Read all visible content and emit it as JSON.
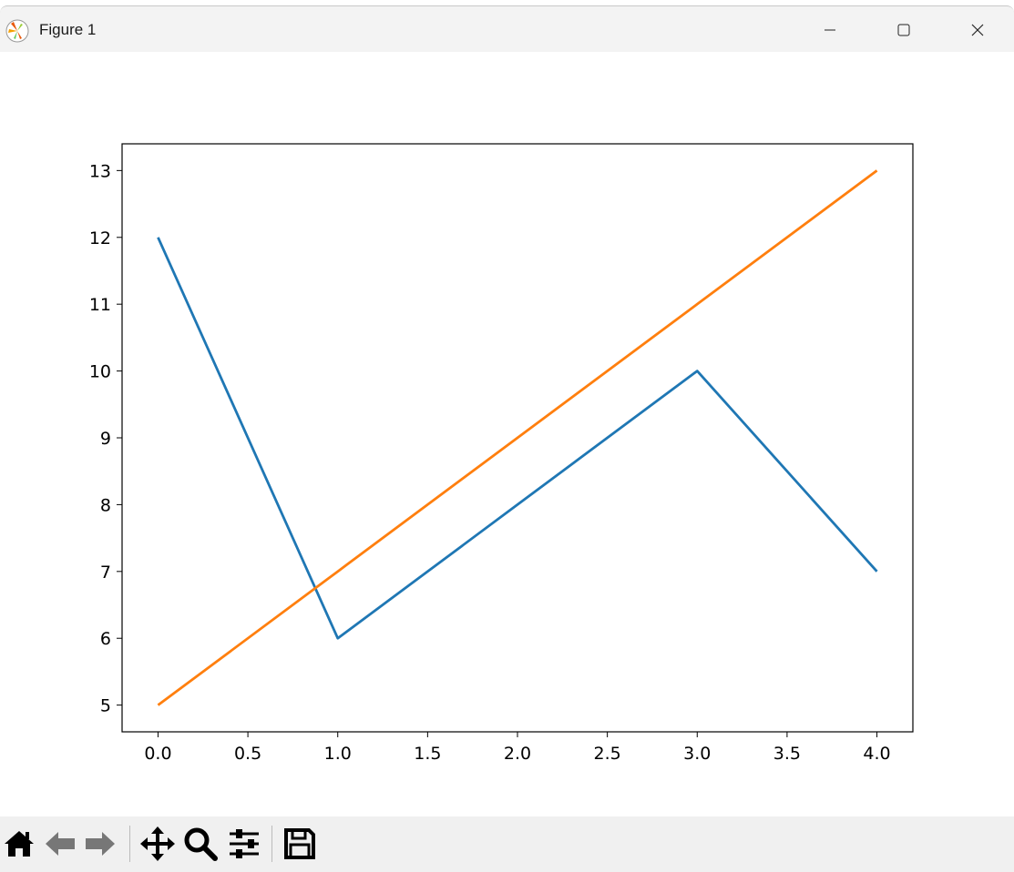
{
  "window": {
    "title": "Figure 1",
    "app_icon": "matplotlib-logo",
    "controls": [
      "minimize",
      "maximize",
      "close"
    ]
  },
  "toolbar": {
    "buttons": [
      "home",
      "back",
      "forward",
      "pan",
      "zoom",
      "configure-subplots",
      "save"
    ]
  },
  "chart_data": {
    "type": "line",
    "title": "",
    "xlabel": "",
    "ylabel": "",
    "x": [
      0,
      1,
      2,
      3,
      4
    ],
    "series": [
      {
        "values": [
          12,
          6,
          8,
          10,
          7
        ],
        "color": "#1f77b4"
      },
      {
        "values": [
          5,
          7,
          9,
          11,
          13
        ],
        "color": "#ff7f0e"
      }
    ],
    "xlim": [
      -0.2,
      4.2
    ],
    "ylim": [
      4.6,
      13.4
    ],
    "xticks": [
      "0.0",
      "0.5",
      "1.0",
      "1.5",
      "2.0",
      "2.5",
      "3.0",
      "3.5",
      "4.0"
    ],
    "yticks": [
      "5",
      "6",
      "7",
      "8",
      "9",
      "10",
      "11",
      "12",
      "13"
    ],
    "grid": false,
    "legend": "none"
  }
}
